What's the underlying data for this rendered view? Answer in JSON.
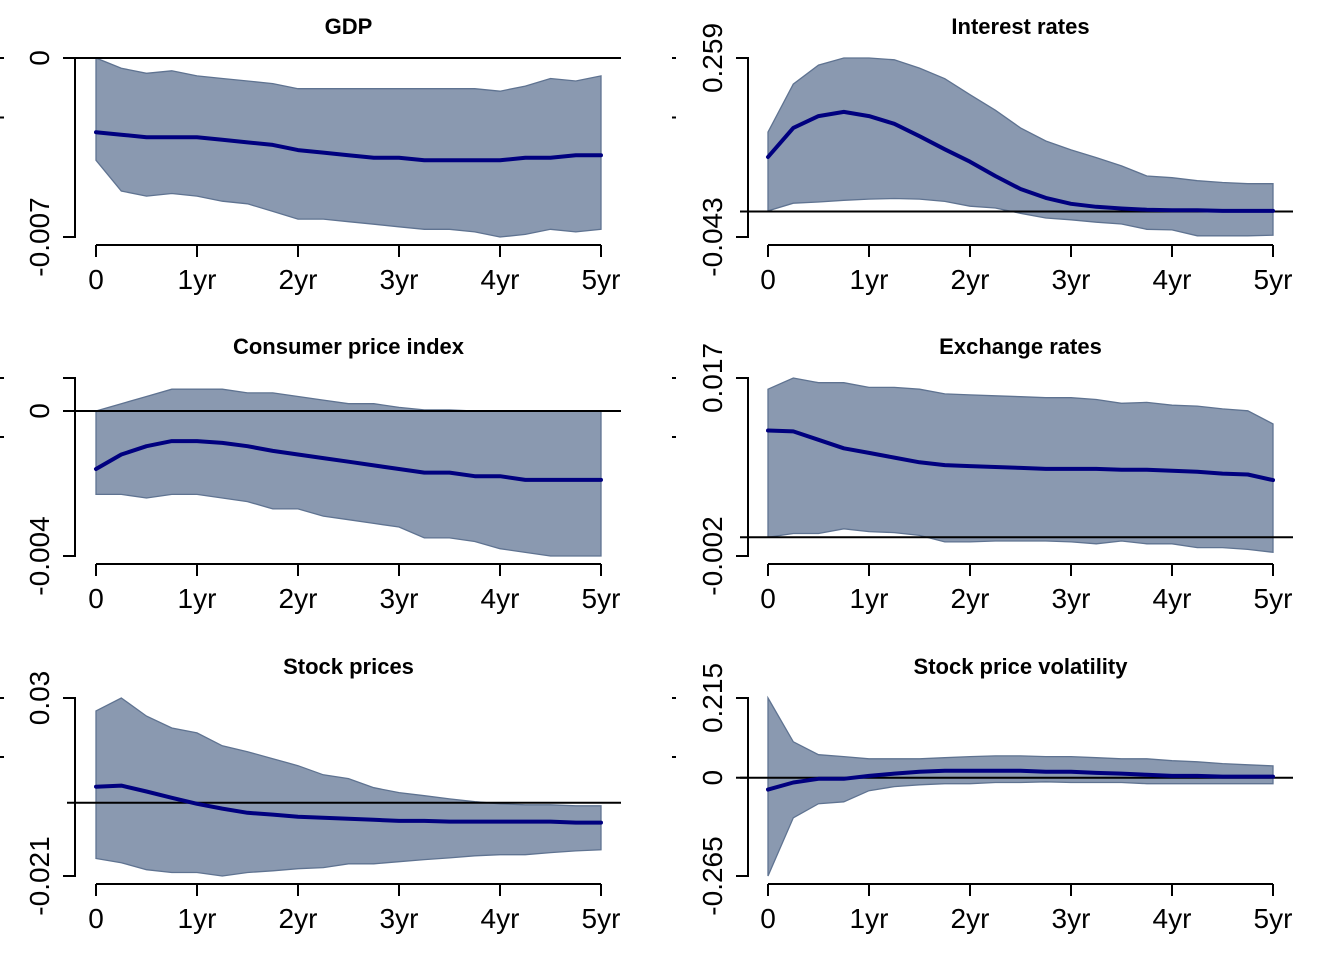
{
  "chart_data": [
    {
      "type": "area",
      "title": "GDP",
      "x": [
        0,
        0.25,
        0.5,
        0.75,
        1,
        1.25,
        1.5,
        1.75,
        2,
        2.25,
        2.5,
        2.75,
        3,
        3.25,
        3.5,
        3.75,
        4,
        4.25,
        4.5,
        4.75,
        5
      ],
      "xticks": [
        0,
        1,
        2,
        3,
        4,
        5
      ],
      "xtick_labels": [
        "0",
        "1yr",
        "2yr",
        "3yr",
        "4yr",
        "5yr"
      ],
      "ylim": [
        -0.007,
        0
      ],
      "yticks": [
        -0.007,
        0
      ],
      "ytick_labels": [
        "-0.007",
        "0"
      ],
      "hline": 0,
      "series": [
        {
          "name": "upper",
          "values": [
            0,
            -0.0004,
            -0.0006,
            -0.0005,
            -0.0007,
            -0.0008,
            -0.0009,
            -0.001,
            -0.0012,
            -0.0012,
            -0.0012,
            -0.0012,
            -0.0012,
            -0.0012,
            -0.0012,
            -0.0012,
            -0.0013,
            -0.0011,
            -0.0008,
            -0.0009,
            -0.0007
          ]
        },
        {
          "name": "median",
          "values": [
            -0.0029,
            -0.003,
            -0.0031,
            -0.0031,
            -0.0031,
            -0.0032,
            -0.0033,
            -0.0034,
            -0.0036,
            -0.0037,
            -0.0038,
            -0.0039,
            -0.0039,
            -0.004,
            -0.004,
            -0.004,
            -0.004,
            -0.0039,
            -0.0039,
            -0.0038,
            -0.0038
          ]
        },
        {
          "name": "lower",
          "values": [
            -0.004,
            -0.0052,
            -0.0054,
            -0.0053,
            -0.0054,
            -0.0056,
            -0.0057,
            -0.006,
            -0.0063,
            -0.0063,
            -0.0064,
            -0.0065,
            -0.0066,
            -0.0067,
            -0.0067,
            -0.0068,
            -0.007,
            -0.0069,
            -0.0067,
            -0.0068,
            -0.0067
          ]
        }
      ]
    },
    {
      "type": "area",
      "title": "Interest rates",
      "x": [
        0,
        0.25,
        0.5,
        0.75,
        1,
        1.25,
        1.5,
        1.75,
        2,
        2.25,
        2.5,
        2.75,
        3,
        3.25,
        3.5,
        3.75,
        4,
        4.25,
        4.5,
        4.75,
        5
      ],
      "xticks": [
        0,
        1,
        2,
        3,
        4,
        5
      ],
      "xtick_labels": [
        "0",
        "1yr",
        "2yr",
        "3yr",
        "4yr",
        "5yr"
      ],
      "ylim": [
        -0.043,
        0.259
      ],
      "yticks": [
        -0.043,
        0.259
      ],
      "ytick_labels": [
        "-0.043",
        "0.259"
      ],
      "hline": 0,
      "series": [
        {
          "name": "upper",
          "values": [
            0.134,
            0.215,
            0.247,
            0.259,
            0.259,
            0.256,
            0.242,
            0.224,
            0.197,
            0.171,
            0.141,
            0.119,
            0.104,
            0.091,
            0.077,
            0.06,
            0.057,
            0.052,
            0.049,
            0.047,
            0.047
          ]
        },
        {
          "name": "median",
          "values": [
            0.092,
            0.141,
            0.161,
            0.168,
            0.161,
            0.148,
            0.127,
            0.105,
            0.084,
            0.06,
            0.038,
            0.023,
            0.013,
            0.008,
            0.005,
            0.003,
            0.002,
            0.002,
            0.001,
            0.001,
            0.001
          ]
        },
        {
          "name": "lower",
          "values": [
            0.001,
            0.014,
            0.016,
            0.019,
            0.021,
            0.022,
            0.021,
            0.017,
            0.009,
            0.006,
            -0.003,
            -0.011,
            -0.014,
            -0.018,
            -0.021,
            -0.03,
            -0.031,
            -0.041,
            -0.041,
            -0.041,
            -0.04
          ]
        }
      ]
    },
    {
      "type": "area",
      "title": "Consumer price index",
      "x": [
        0,
        0.25,
        0.5,
        0.75,
        1,
        1.25,
        1.5,
        1.75,
        2,
        2.25,
        2.5,
        2.75,
        3,
        3.25,
        3.5,
        3.75,
        4,
        4.25,
        4.5,
        4.75,
        5
      ],
      "xticks": [
        0,
        1,
        2,
        3,
        4,
        5
      ],
      "xtick_labels": [
        "0",
        "1yr",
        "2yr",
        "3yr",
        "4yr",
        "5yr"
      ],
      "ylim": [
        -0.004,
        0.00091
      ],
      "yticks": [
        -0.004,
        0,
        0.00091
      ],
      "ytick_labels": [
        "-0.004",
        "0",
        ""
      ],
      "hline": 0,
      "series": [
        {
          "name": "upper",
          "values": [
            0,
            0.0002,
            0.0004,
            0.0006,
            0.0006,
            0.0006,
            0.0005,
            0.0005,
            0.0004,
            0.0003,
            0.0002,
            0.0002,
            0.0001,
            3e-05,
            3e-05,
            0,
            0,
            0,
            0,
            0,
            0
          ]
        },
        {
          "name": "median",
          "values": [
            -0.0016,
            -0.0012,
            -0.00097,
            -0.00083,
            -0.00083,
            -0.00088,
            -0.00097,
            -0.0011,
            -0.0012,
            -0.0013,
            -0.0014,
            -0.0015,
            -0.0016,
            -0.0017,
            -0.0017,
            -0.0018,
            -0.0018,
            -0.0019,
            -0.0019,
            -0.0019,
            -0.0019
          ]
        },
        {
          "name": "lower",
          "values": [
            -0.0023,
            -0.0023,
            -0.0024,
            -0.0023,
            -0.0023,
            -0.0024,
            -0.0025,
            -0.0027,
            -0.0027,
            -0.0029,
            -0.003,
            -0.0031,
            -0.0032,
            -0.0035,
            -0.0035,
            -0.0036,
            -0.0038,
            -0.0039,
            -0.004,
            -0.004,
            -0.004
          ]
        }
      ]
    },
    {
      "type": "area",
      "title": "Exchange rates",
      "x": [
        0,
        0.25,
        0.5,
        0.75,
        1,
        1.25,
        1.5,
        1.75,
        2,
        2.25,
        2.5,
        2.75,
        3,
        3.25,
        3.5,
        3.75,
        4,
        4.25,
        4.5,
        4.75,
        5
      ],
      "xticks": [
        0,
        1,
        2,
        3,
        4,
        5
      ],
      "xtick_labels": [
        "0",
        "1yr",
        "2yr",
        "3yr",
        "4yr",
        "5yr"
      ],
      "ylim": [
        -0.002,
        0.017
      ],
      "yticks": [
        -0.002,
        0.017
      ],
      "ytick_labels": [
        "-0.002",
        "0.017"
      ],
      "hline": 0,
      "series": [
        {
          "name": "upper",
          "values": [
            0.0158,
            0.017,
            0.0165,
            0.0165,
            0.016,
            0.016,
            0.0158,
            0.0153,
            0.0152,
            0.0151,
            0.015,
            0.0149,
            0.0149,
            0.0147,
            0.0143,
            0.0144,
            0.0141,
            0.014,
            0.0137,
            0.0135,
            0.0121
          ]
        },
        {
          "name": "median",
          "values": [
            0.0114,
            0.0113,
            0.0104,
            0.0095,
            0.009,
            0.0085,
            0.008,
            0.0077,
            0.0076,
            0.0075,
            0.0074,
            0.0073,
            0.0073,
            0.0073,
            0.0072,
            0.0072,
            0.0071,
            0.007,
            0.0068,
            0.0067,
            0.0061
          ]
        },
        {
          "name": "lower",
          "values": [
            0,
            0.0004,
            0.0004,
            0.0009,
            0.0006,
            0.0005,
            0.0002,
            -0.0005,
            -0.0005,
            -0.0004,
            -0.0004,
            -0.0004,
            -0.0005,
            -0.0007,
            -0.0004,
            -0.0007,
            -0.0007,
            -0.0011,
            -0.0011,
            -0.0013,
            -0.0016
          ]
        }
      ]
    },
    {
      "type": "area",
      "title": "Stock prices",
      "x": [
        0,
        0.25,
        0.5,
        0.75,
        1,
        1.25,
        1.5,
        1.75,
        2,
        2.25,
        2.5,
        2.75,
        3,
        3.25,
        3.5,
        3.75,
        4,
        4.25,
        4.5,
        4.75,
        5
      ],
      "xticks": [
        0,
        1,
        2,
        3,
        4,
        5
      ],
      "xtick_labels": [
        "0",
        "1yr",
        "2yr",
        "3yr",
        "4yr",
        "5yr"
      ],
      "ylim": [
        -0.021,
        0.03
      ],
      "yticks": [
        -0.021,
        0.03
      ],
      "ytick_labels": [
        "-0.021",
        "0.03"
      ],
      "hline": 0,
      "series": [
        {
          "name": "upper",
          "values": [
            0.0263,
            0.03,
            0.0248,
            0.0214,
            0.02,
            0.0163,
            0.0146,
            0.0126,
            0.0106,
            0.008,
            0.0069,
            0.0043,
            0.0029,
            0.002,
            0.0011,
            0.0003,
            -0.0003,
            -0.0006,
            -0.0006,
            -0.0009,
            -0.0009
          ]
        },
        {
          "name": "median",
          "values": [
            0.0046,
            0.0049,
            0.0032,
            0.0014,
            -0.0003,
            -0.0017,
            -0.0029,
            -0.0034,
            -0.004,
            -0.0043,
            -0.0046,
            -0.0049,
            -0.0052,
            -0.0052,
            -0.0054,
            -0.0054,
            -0.0054,
            -0.0054,
            -0.0054,
            -0.0057,
            -0.0057
          ]
        },
        {
          "name": "lower",
          "values": [
            -0.016,
            -0.0172,
            -0.0192,
            -0.02,
            -0.02,
            -0.021,
            -0.02,
            -0.0195,
            -0.0189,
            -0.0186,
            -0.0175,
            -0.0175,
            -0.0169,
            -0.0163,
            -0.0158,
            -0.0152,
            -0.0149,
            -0.0149,
            -0.0143,
            -0.0138,
            -0.0135
          ]
        }
      ]
    },
    {
      "type": "area",
      "title": "Stock price volatility",
      "x": [
        0,
        0.25,
        0.5,
        0.75,
        1,
        1.25,
        1.5,
        1.75,
        2,
        2.25,
        2.5,
        2.75,
        3,
        3.25,
        3.5,
        3.75,
        4,
        4.25,
        4.5,
        4.75,
        5
      ],
      "xticks": [
        0,
        1,
        2,
        3,
        4,
        5
      ],
      "xtick_labels": [
        "0",
        "1yr",
        "2yr",
        "3yr",
        "4yr",
        "5yr"
      ],
      "ylim": [
        -0.265,
        0.215
      ],
      "yticks": [
        -0.265,
        0,
        0.215
      ],
      "ytick_labels": [
        "-0.265",
        "0",
        "0.215"
      ],
      "hline": 0,
      "series": [
        {
          "name": "upper",
          "values": [
            0.215,
            0.097,
            0.062,
            0.057,
            0.051,
            0.051,
            0.051,
            0.054,
            0.057,
            0.059,
            0.059,
            0.057,
            0.057,
            0.054,
            0.051,
            0.051,
            0.046,
            0.043,
            0.038,
            0.035,
            0.032
          ]
        },
        {
          "name": "median",
          "values": [
            -0.032,
            -0.013,
            -0.003,
            -0.003,
            0.005,
            0.011,
            0.016,
            0.019,
            0.019,
            0.019,
            0.019,
            0.016,
            0.016,
            0.013,
            0.011,
            0.008,
            0.005,
            0.005,
            0.003,
            0.003,
            0.003
          ]
        },
        {
          "name": "lower",
          "values": [
            -0.265,
            -0.108,
            -0.07,
            -0.065,
            -0.035,
            -0.024,
            -0.019,
            -0.016,
            -0.016,
            -0.013,
            -0.013,
            -0.011,
            -0.013,
            -0.013,
            -0.013,
            -0.016,
            -0.016,
            -0.016,
            -0.016,
            -0.016,
            -0.016
          ]
        }
      ]
    }
  ],
  "colors": {
    "band_fill": "#8a99b0",
    "band_edge": "#5f7391",
    "median_line": "#00007f",
    "axis": "#000000"
  }
}
